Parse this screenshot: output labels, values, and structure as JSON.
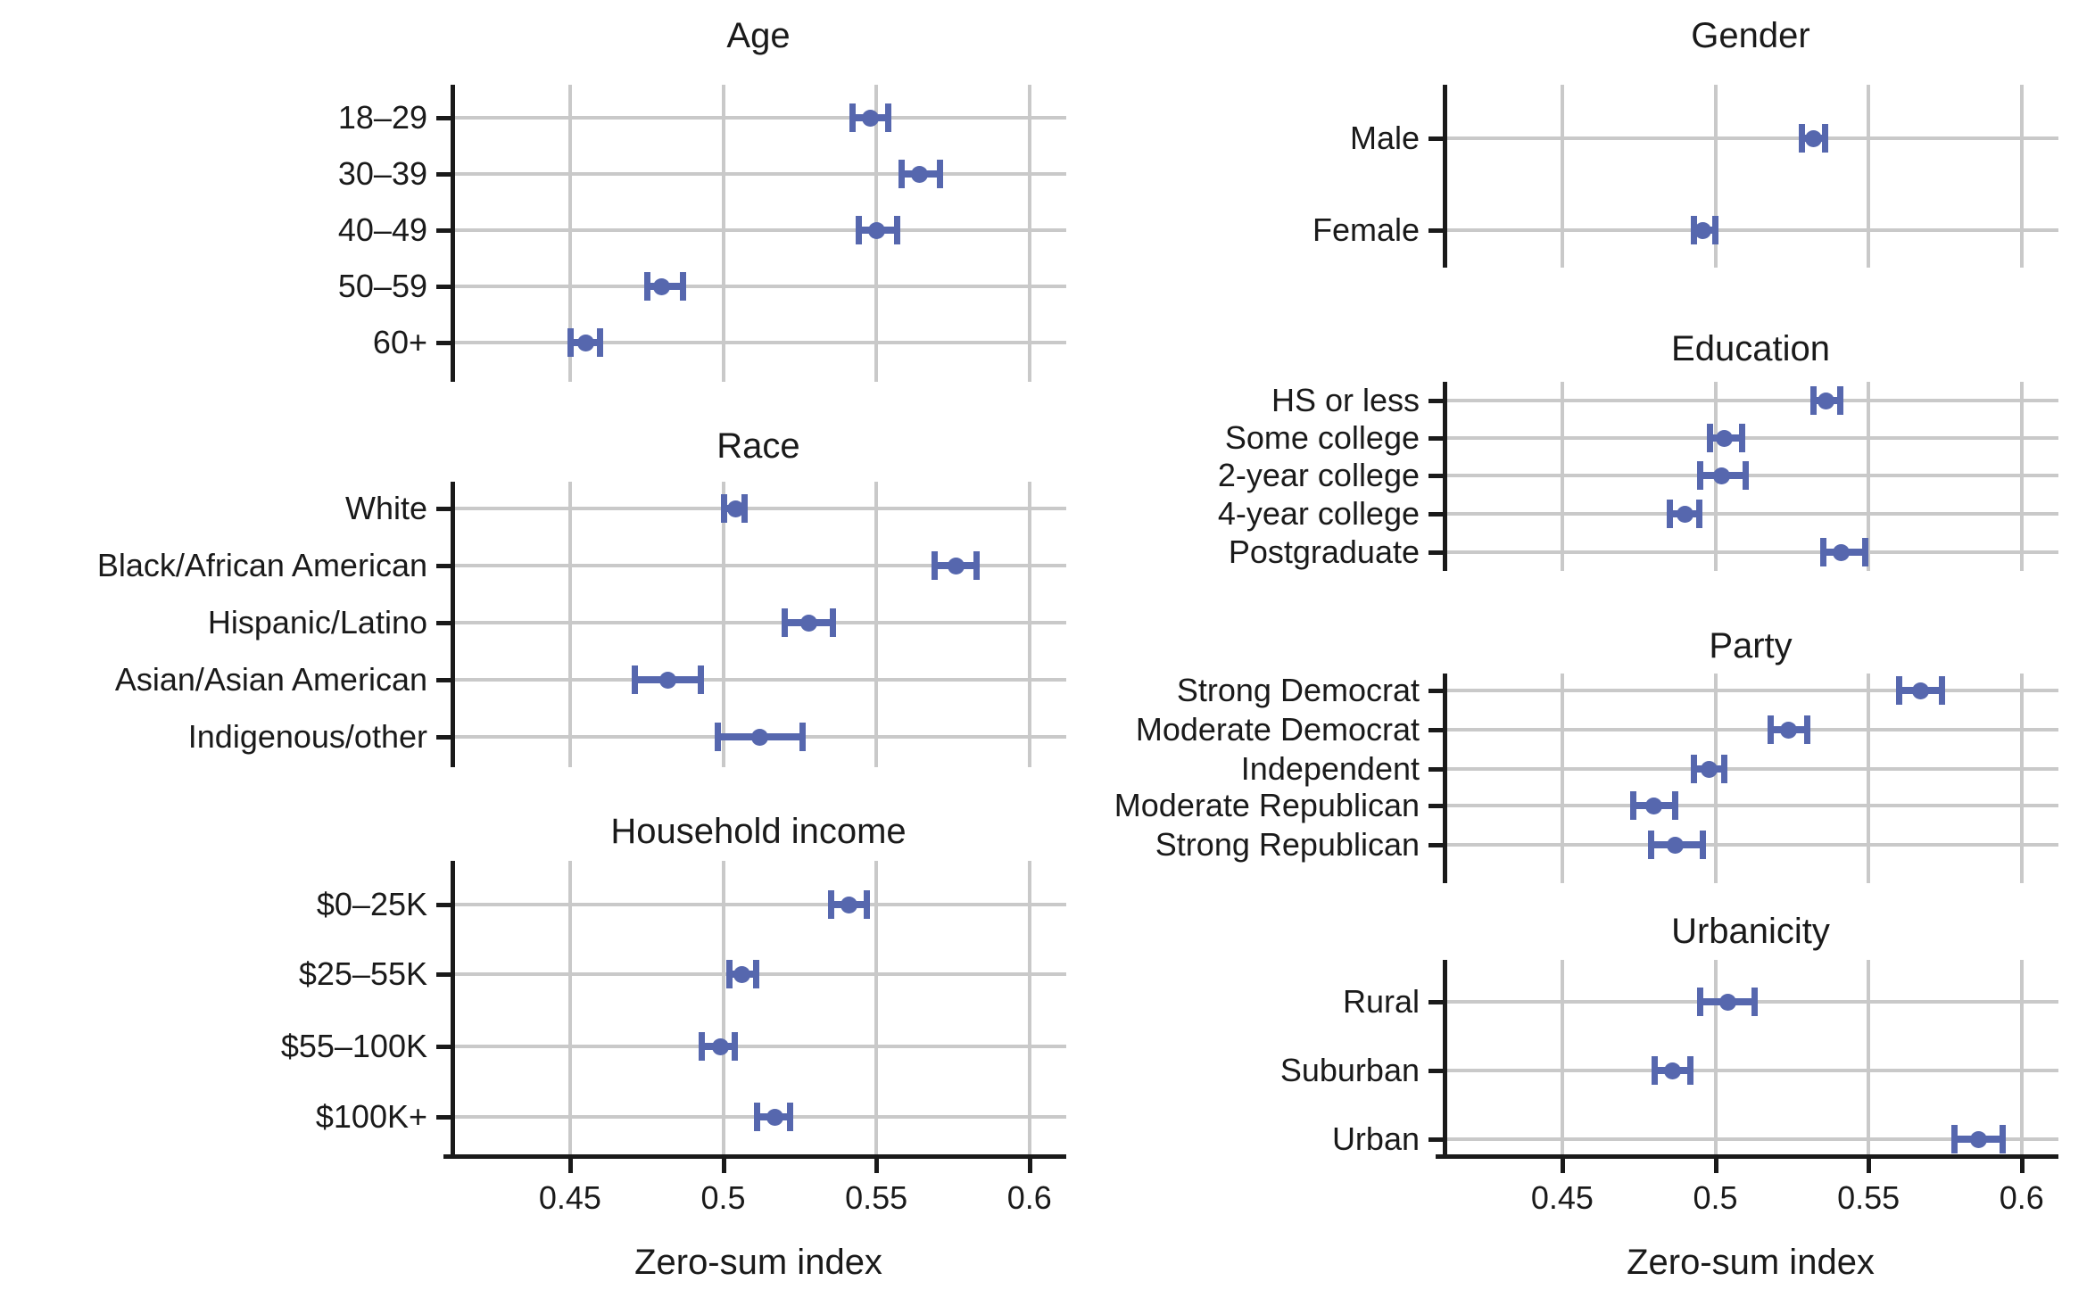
{
  "figure": {
    "xlabel": "Zero-sum index",
    "x_domain": [
      0.411,
      0.612
    ],
    "x_ticks": [
      {
        "label": "0.45",
        "value": 0.45
      },
      {
        "label": "0.5",
        "value": 0.5
      },
      {
        "label": "0.55",
        "value": 0.55
      },
      {
        "label": "0.6",
        "value": 0.6
      }
    ],
    "colors": {
      "marker": "#5667ae",
      "grid": "#c9c9c9",
      "axis": "#1a1a1a",
      "text": "#1a1a1a"
    }
  },
  "chart_data": [
    {
      "type": "scatter",
      "title": "Age",
      "column": "left",
      "xlabel": "Zero-sum index",
      "xlim": [
        0.411,
        0.612
      ],
      "grid": true,
      "rows": [
        {
          "label": "18–29",
          "est": 0.548,
          "lo": 0.542,
          "hi": 0.554
        },
        {
          "label": "30–39",
          "est": 0.564,
          "lo": 0.558,
          "hi": 0.571
        },
        {
          "label": "40–49",
          "est": 0.55,
          "lo": 0.544,
          "hi": 0.557
        },
        {
          "label": "50–59",
          "est": 0.48,
          "lo": 0.475,
          "hi": 0.487
        },
        {
          "label": "60+",
          "est": 0.455,
          "lo": 0.45,
          "hi": 0.46
        }
      ]
    },
    {
      "type": "scatter",
      "title": "Race",
      "column": "left",
      "xlabel": "Zero-sum index",
      "xlim": [
        0.411,
        0.612
      ],
      "grid": true,
      "rows": [
        {
          "label": "White",
          "est": 0.504,
          "lo": 0.5,
          "hi": 0.507
        },
        {
          "label": "Black/African American",
          "est": 0.576,
          "lo": 0.569,
          "hi": 0.583
        },
        {
          "label": "Hispanic/Latino",
          "est": 0.528,
          "lo": 0.52,
          "hi": 0.536
        },
        {
          "label": "Asian/Asian American",
          "est": 0.482,
          "lo": 0.471,
          "hi": 0.493
        },
        {
          "label": "Indigenous/other",
          "est": 0.512,
          "lo": 0.498,
          "hi": 0.526
        }
      ]
    },
    {
      "type": "scatter",
      "title": "Household income",
      "column": "left",
      "xlabel": "Zero-sum index",
      "xlim": [
        0.411,
        0.612
      ],
      "grid": true,
      "rows": [
        {
          "label": "$0–25K",
          "est": 0.541,
          "lo": 0.535,
          "hi": 0.547
        },
        {
          "label": "$25–55K",
          "est": 0.506,
          "lo": 0.502,
          "hi": 0.511
        },
        {
          "label": "$55–100K",
          "est": 0.499,
          "lo": 0.493,
          "hi": 0.504
        },
        {
          "label": "$100K+",
          "est": 0.517,
          "lo": 0.511,
          "hi": 0.522
        }
      ]
    },
    {
      "type": "scatter",
      "title": "Gender",
      "column": "right",
      "xlabel": "Zero-sum index",
      "xlim": [
        0.411,
        0.612
      ],
      "grid": true,
      "rows": [
        {
          "label": "Male",
          "est": 0.532,
          "lo": 0.528,
          "hi": 0.536
        },
        {
          "label": "Female",
          "est": 0.496,
          "lo": 0.493,
          "hi": 0.5
        }
      ]
    },
    {
      "type": "scatter",
      "title": "Education",
      "column": "right",
      "xlabel": "Zero-sum index",
      "xlim": [
        0.411,
        0.612
      ],
      "grid": true,
      "rows": [
        {
          "label": "HS or less",
          "est": 0.536,
          "lo": 0.532,
          "hi": 0.541
        },
        {
          "label": "Some college",
          "est": 0.503,
          "lo": 0.498,
          "hi": 0.509
        },
        {
          "label": "2-year college",
          "est": 0.502,
          "lo": 0.495,
          "hi": 0.51
        },
        {
          "label": "4-year college",
          "est": 0.49,
          "lo": 0.485,
          "hi": 0.495
        },
        {
          "label": "Postgraduate",
          "est": 0.541,
          "lo": 0.535,
          "hi": 0.549
        }
      ]
    },
    {
      "type": "scatter",
      "title": "Party",
      "column": "right",
      "xlabel": "Zero-sum index",
      "xlim": [
        0.411,
        0.612
      ],
      "grid": true,
      "rows": [
        {
          "label": "Strong Democrat",
          "est": 0.567,
          "lo": 0.56,
          "hi": 0.574
        },
        {
          "label": "Moderate Democrat",
          "est": 0.524,
          "lo": 0.518,
          "hi": 0.53
        },
        {
          "label": "Independent",
          "est": 0.498,
          "lo": 0.493,
          "hi": 0.503
        },
        {
          "label": "Moderate Republican",
          "est": 0.48,
          "lo": 0.473,
          "hi": 0.487
        },
        {
          "label": "Strong Republican",
          "est": 0.487,
          "lo": 0.479,
          "hi": 0.496
        }
      ]
    },
    {
      "type": "scatter",
      "title": "Urbanicity",
      "column": "right",
      "xlabel": "Zero-sum index",
      "xlim": [
        0.411,
        0.612
      ],
      "grid": true,
      "rows": [
        {
          "label": "Rural",
          "est": 0.504,
          "lo": 0.495,
          "hi": 0.513
        },
        {
          "label": "Suburban",
          "est": 0.486,
          "lo": 0.48,
          "hi": 0.492
        },
        {
          "label": "Urban",
          "est": 0.586,
          "lo": 0.578,
          "hi": 0.594
        }
      ]
    }
  ]
}
